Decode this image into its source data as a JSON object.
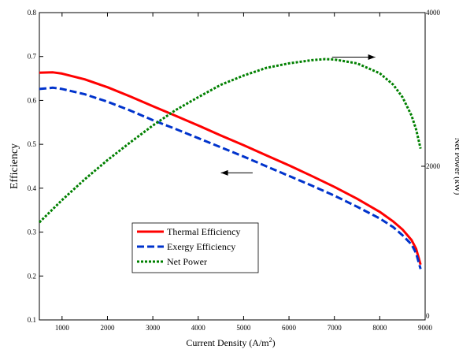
{
  "chart_data": {
    "type": "line",
    "title": "",
    "xlabel": "Current Density (A/m",
    "xlabel_sup": "2",
    "xlabel_close": ")",
    "ylabel": "Efficiency",
    "ylabel_right": "Net Power (kW)",
    "xlim": [
      500,
      9000
    ],
    "ylim": [
      0.1,
      0.8
    ],
    "ylim_right": [
      0,
      4000
    ],
    "x_ticks": [
      1000,
      2000,
      3000,
      4000,
      5000,
      6000,
      7000,
      8000,
      9000
    ],
    "y_ticks": [
      0.1,
      0.2,
      0.3,
      0.4,
      0.5,
      0.6,
      0.7,
      0.8
    ],
    "y_tick_labels": [
      "0.1",
      "0.2",
      "0.3",
      "0.4",
      "0.5",
      "0.6",
      "0.7",
      "0.8"
    ],
    "y_right_ticks": [
      0,
      2000,
      4000
    ],
    "y_right_tick_labels": [
      "0",
      "2000",
      "4000"
    ],
    "grid": false,
    "legend_position": "bottom-left",
    "series": [
      {
        "name": "Thermal Efficiency",
        "axis": "left",
        "color": "#ff0000",
        "dash": "solid",
        "x": [
          500,
          800,
          1000,
          1500,
          2000,
          2500,
          3000,
          3500,
          4000,
          4500,
          5000,
          5500,
          6000,
          6500,
          7000,
          7500,
          8000,
          8300,
          8500,
          8700,
          8800,
          8900
        ],
        "y": [
          0.663,
          0.664,
          0.661,
          0.648,
          0.63,
          0.609,
          0.587,
          0.565,
          0.543,
          0.52,
          0.498,
          0.475,
          0.452,
          0.428,
          0.403,
          0.376,
          0.346,
          0.324,
          0.306,
          0.282,
          0.262,
          0.226
        ]
      },
      {
        "name": "Exergy Efficiency",
        "axis": "left",
        "color": "#0033cc",
        "dash": "dashed",
        "x": [
          500,
          800,
          1000,
          1500,
          2000,
          2500,
          3000,
          3500,
          4000,
          4500,
          5000,
          5500,
          6000,
          6500,
          7000,
          7500,
          8000,
          8300,
          8500,
          8700,
          8800,
          8900
        ],
        "y": [
          0.626,
          0.629,
          0.626,
          0.614,
          0.597,
          0.577,
          0.555,
          0.535,
          0.514,
          0.493,
          0.472,
          0.45,
          0.428,
          0.406,
          0.383,
          0.358,
          0.331,
          0.311,
          0.293,
          0.272,
          0.252,
          0.216
        ]
      },
      {
        "name": "Net Power",
        "axis": "right",
        "color": "#008000",
        "dash": "dotted",
        "x": [
          500,
          1000,
          1500,
          2000,
          2500,
          3000,
          3500,
          4000,
          4500,
          5000,
          5500,
          6000,
          6500,
          6800,
          7000,
          7500,
          8000,
          8300,
          8500,
          8700,
          8800,
          8900
        ],
        "y": [
          1270,
          1560,
          1830,
          2080,
          2310,
          2530,
          2730,
          2900,
          3060,
          3180,
          3280,
          3340,
          3380,
          3395,
          3390,
          3340,
          3210,
          3060,
          2900,
          2660,
          2480,
          2230
        ]
      }
    ],
    "annotations": [
      {
        "type": "arrow",
        "direction": "right",
        "x_start": 6950,
        "x_end": 7900,
        "y": 3420,
        "axis": "right",
        "meaning": "points to Net Power axis"
      },
      {
        "type": "arrow",
        "direction": "left",
        "x_start": 5200,
        "x_end": 4500,
        "y": 0.435,
        "axis": "left",
        "meaning": "points to Efficiency axis"
      }
    ]
  }
}
